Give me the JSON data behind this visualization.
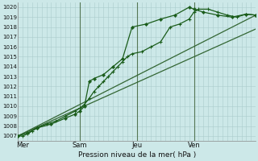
{
  "xlabel": "Pression niveau de la mer( hPa )",
  "ylim": [
    1006.5,
    1020.5
  ],
  "xlim": [
    0,
    100
  ],
  "yticks": [
    1007,
    1008,
    1009,
    1010,
    1011,
    1012,
    1013,
    1014,
    1015,
    1016,
    1017,
    1018,
    1019,
    1020
  ],
  "day_ticks_x": [
    2,
    26,
    50,
    74,
    98
  ],
  "day_labels": [
    "Mer",
    "Sam",
    "Jeu",
    "Ven",
    ""
  ],
  "vline_x": [
    26,
    50,
    74
  ],
  "bg_color": "#cce8e8",
  "grid_color": "#aacccc",
  "line_color_dark": "#1a5c1a",
  "line_color_mid": "#336633",
  "series1_x": [
    0,
    2,
    4,
    6,
    8,
    12,
    16,
    20,
    24,
    26,
    28,
    30,
    32,
    34,
    36,
    38,
    40,
    42,
    44,
    46,
    48,
    52,
    56,
    60,
    64,
    68,
    72,
    74,
    76,
    80,
    84,
    88,
    92,
    96,
    100
  ],
  "series1_y": [
    1007.0,
    1007.0,
    1007.2,
    1007.5,
    1007.8,
    1008.2,
    1008.5,
    1009.0,
    1009.5,
    1009.8,
    1010.2,
    1010.8,
    1011.5,
    1012.0,
    1012.5,
    1013.0,
    1013.5,
    1014.0,
    1014.5,
    1015.0,
    1015.3,
    1015.5,
    1016.0,
    1016.5,
    1018.0,
    1018.3,
    1018.8,
    1019.5,
    1019.8,
    1019.8,
    1019.5,
    1019.2,
    1019.0,
    1019.3,
    1019.2
  ],
  "series2_x": [
    0,
    4,
    8,
    14,
    20,
    24,
    26,
    28,
    30,
    32,
    36,
    40,
    44,
    48,
    54,
    60,
    66,
    72,
    74,
    78,
    84,
    90,
    96,
    100
  ],
  "series2_y": [
    1007.0,
    1007.3,
    1007.8,
    1008.2,
    1008.8,
    1009.2,
    1009.5,
    1010.0,
    1012.5,
    1012.8,
    1013.2,
    1014.0,
    1014.8,
    1018.0,
    1018.3,
    1018.8,
    1019.2,
    1020.0,
    1019.8,
    1019.5,
    1019.2,
    1019.0,
    1019.3,
    1019.2
  ],
  "trend1_x": [
    0,
    100
  ],
  "trend1_y": [
    1007.0,
    1019.2
  ],
  "trend2_x": [
    0,
    100
  ],
  "trend2_y": [
    1007.0,
    1017.8
  ]
}
